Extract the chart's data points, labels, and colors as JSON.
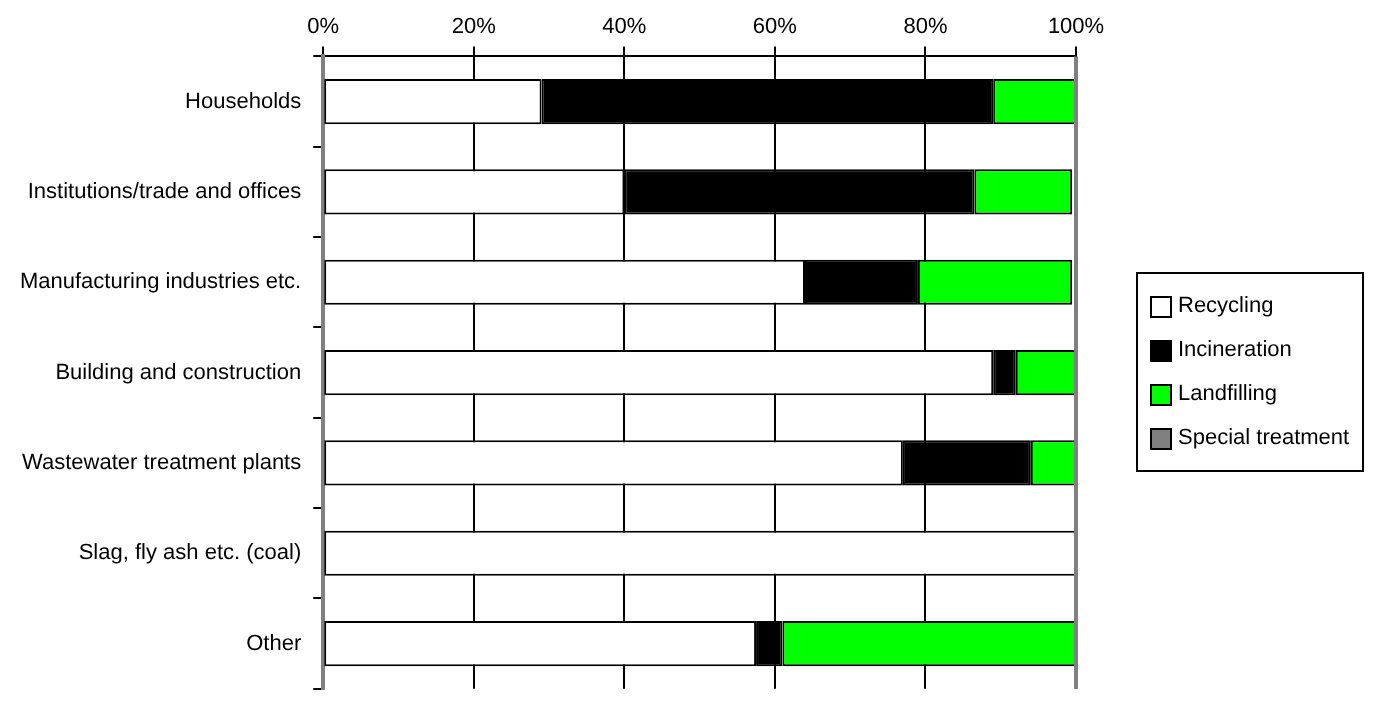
{
  "chart_data": {
    "type": "bar",
    "orientation": "horizontal",
    "stacked": true,
    "categories": [
      "Households",
      "Institutions/trade and offices",
      "Manufacturing industries etc.",
      "Building and construction",
      "Wastewater treatment plants",
      "Slag, fly ash etc. (coal)",
      "Other"
    ],
    "series": [
      {
        "name": "Recycling",
        "color": "#ffffff",
        "values": [
          29,
          40,
          64,
          89,
          77,
          100,
          57.5
        ]
      },
      {
        "name": "Incineration",
        "color": "#000000",
        "values": [
          60,
          46.5,
          15,
          3,
          17,
          0,
          3.5
        ]
      },
      {
        "name": "Landfilling",
        "color": "#00ff00",
        "values": [
          11,
          13,
          20.5,
          8,
          6,
          0,
          39
        ]
      },
      {
        "name": "Special treatment",
        "color": "#808080",
        "values": [
          0,
          null,
          null,
          0,
          0,
          0,
          0
        ]
      }
    ],
    "xlim": [
      0,
      100
    ],
    "xticks": [
      {
        "value": 0,
        "label": "0%"
      },
      {
        "value": 20,
        "label": "20%"
      },
      {
        "value": 40,
        "label": "40%"
      },
      {
        "value": 60,
        "label": "60%"
      },
      {
        "value": 80,
        "label": "80%"
      },
      {
        "value": 100,
        "label": "100%"
      }
    ],
    "grid": "x",
    "legend": "right"
  }
}
